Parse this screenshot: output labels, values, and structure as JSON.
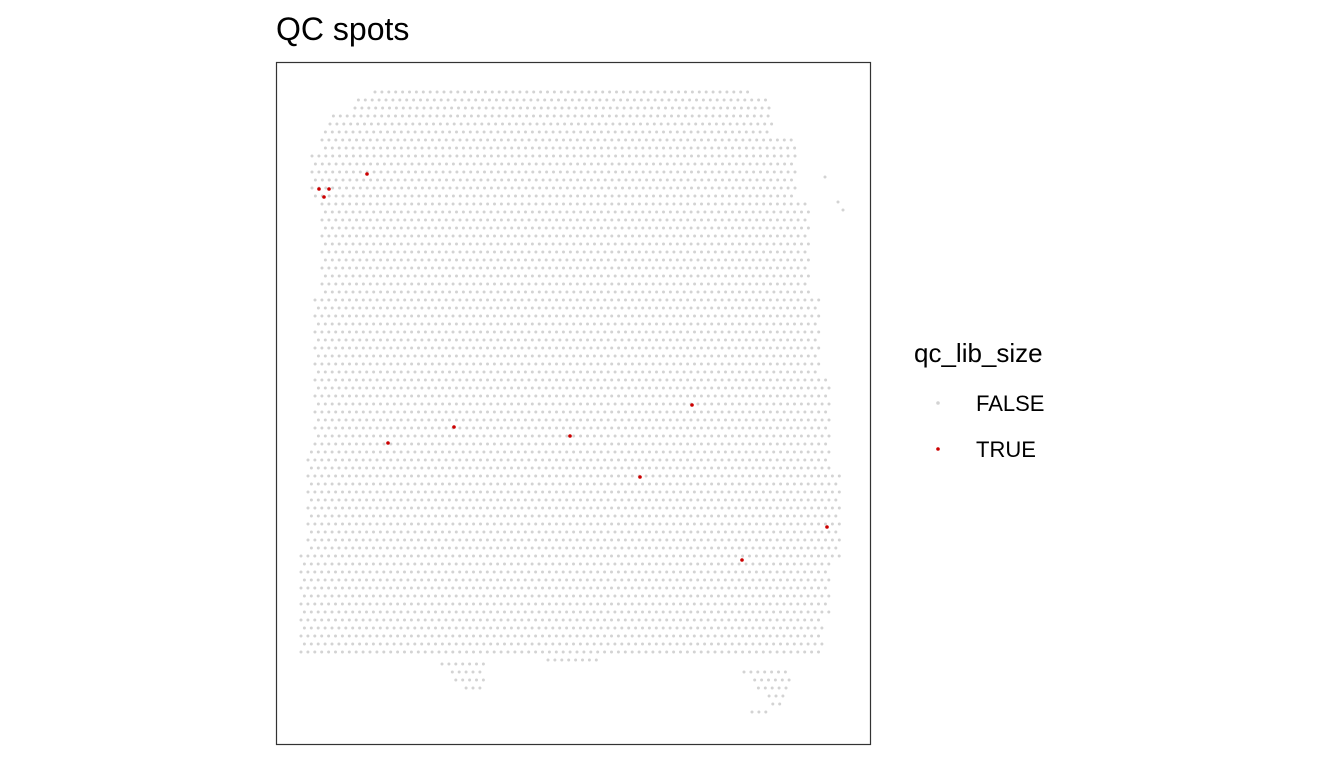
{
  "chart_data": {
    "type": "scatter",
    "title": "QC spots",
    "xlabel": "",
    "ylabel": "",
    "axes_visible": false,
    "grid": false,
    "panel_border": true,
    "legend": {
      "title": "qc_lib_size",
      "placement": "right",
      "entries": [
        {
          "label": "FALSE",
          "color": "#d3d3d3"
        },
        {
          "label": "TRUE",
          "color": "#cc0000"
        }
      ]
    },
    "series": [
      {
        "name": "TRUE",
        "color": "#cc0000",
        "points": [
          [
            319,
            189
          ],
          [
            329,
            189
          ],
          [
            324,
            197
          ],
          [
            367,
            174
          ],
          [
            388,
            443
          ],
          [
            454,
            427
          ],
          [
            570,
            436
          ],
          [
            692,
            405
          ],
          [
            640,
            477
          ],
          [
            827,
            527
          ],
          [
            742,
            560
          ]
        ]
      }
    ],
    "false_region": {
      "name": "FALSE",
      "color": "#d3d3d3",
      "hex_spacing_x": 6.9,
      "hex_spacing_y": 8.0
    }
  }
}
